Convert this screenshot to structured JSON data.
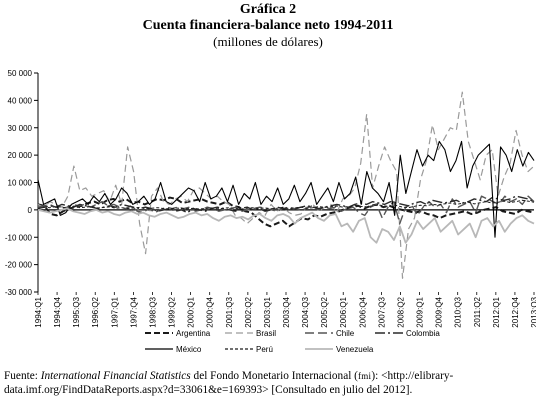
{
  "header": {
    "label": "Gráfica 2",
    "title": "Cuenta financiera-balance neto 1994-2011",
    "subtitle": "(millones de dólares)"
  },
  "source": {
    "prefix": "Fuente: ",
    "italic": "International Financial Statistics",
    "middle": " del Fondo Monetario Internacional (",
    "abbr": "fmi",
    "suffix": "): <http://elibrary-data.imf.org/FindDataReports.aspx?d=33061&e=169393> [Consultado en julio del 2012]."
  },
  "chart_data": {
    "type": "line",
    "title": "Cuenta financiera-balance neto 1994-2011",
    "ylabel": "",
    "xlabel": "",
    "ylim": [
      -30000,
      50000
    ],
    "yticks": [
      -30000,
      -20000,
      -10000,
      0,
      10000,
      20000,
      30000,
      40000,
      50000
    ],
    "ytick_labels": [
      "-30 000",
      "-20 000",
      "-10 000",
      "0",
      "10 000",
      "20 000",
      "30 000",
      "40 000",
      "50 000"
    ],
    "grid": false,
    "legend_position": "bottom",
    "x_start": {
      "year": 1994,
      "quarter": 1
    },
    "x_end": {
      "year": 2013,
      "quarter": 3
    },
    "x_tick_labels": [
      "1994:Q1",
      "1994:Q4",
      "1995:Q3",
      "1996:Q2",
      "1997:Q1",
      "1997:Q4",
      "1998:Q3",
      "1999:Q2",
      "2000:Q1",
      "2000:Q4",
      "2001:Q3",
      "2002:Q2",
      "2003:Q1",
      "2003:Q4",
      "2004:Q3",
      "2005:Q2",
      "2006:Q1",
      "2006:Q4",
      "2007:Q3",
      "2008:Q2",
      "2009:Q1",
      "2009:Q4",
      "2010:Q3",
      "2011:Q2",
      "2012:Q1",
      "2012:Q4",
      "2013:Q3"
    ],
    "series": [
      {
        "name": "Argentina",
        "color": "#1a1a1a",
        "dash": "6,3",
        "width": 2,
        "values": [
          2000,
          1500,
          -1500,
          -2000,
          -500,
          500,
          1000,
          1500,
          2500,
          3000,
          2000,
          3500,
          4000,
          3000,
          4000,
          2500,
          3000,
          2000,
          3000,
          4000,
          3500,
          4500,
          4000,
          2500,
          3000,
          3500,
          4000,
          3000,
          2500,
          2000,
          3000,
          1500,
          1000,
          -500,
          -1000,
          -3000,
          -5000,
          -6000,
          -5000,
          -4000,
          -6000,
          -4500,
          -3000,
          -3500,
          -2000,
          -2500,
          -1500,
          -1000,
          -500,
          500,
          1000,
          1500,
          500,
          1500,
          2000,
          1000,
          1500,
          500,
          0,
          -500,
          -1000,
          -500,
          -1500,
          -2000,
          -3000,
          -2000,
          -1500,
          -1000,
          -500,
          -1500,
          -1000,
          0,
          500,
          1000,
          -500,
          -1000,
          -1500,
          0,
          -500,
          -1000
        ]
      },
      {
        "name": "Brasil",
        "color": "#9a9a9a",
        "dash": "7,4",
        "width": 1.2,
        "values": [
          2000,
          1000,
          3000,
          2000,
          1000,
          5000,
          16000,
          7000,
          8000,
          5000,
          6000,
          7000,
          3000,
          9000,
          2000,
          23000,
          14000,
          -5000,
          -16000,
          5000,
          8000,
          3000,
          2000,
          4000,
          5000,
          3000,
          7000,
          8000,
          6000,
          4000,
          5000,
          3000,
          2000,
          -2000,
          -3000,
          -5000,
          -3000,
          -1000,
          -2000,
          2000,
          -500,
          1000,
          -1000,
          -2000,
          -1500,
          1000,
          2000,
          -500,
          1000,
          2000,
          -1000,
          4000,
          5000,
          8000,
          17000,
          35000,
          8000,
          16000,
          23000,
          18000,
          14000,
          -25000,
          -7000,
          -3000,
          11000,
          18000,
          31000,
          22000,
          26000,
          30000,
          29000,
          43000,
          25000,
          18000,
          11000,
          20000,
          22000,
          5000,
          12000,
          17000,
          29000,
          20000,
          14000,
          16000
        ]
      },
      {
        "name": "Chile",
        "color": "#555555",
        "dash": "9,4",
        "width": 1.4,
        "values": [
          1000,
          1500,
          2000,
          1000,
          500,
          1000,
          2000,
          1500,
          2000,
          1000,
          2000,
          3000,
          1500,
          2000,
          1000,
          500,
          1500,
          -500,
          -1000,
          500,
          -1000,
          0,
          1000,
          500,
          1000,
          500,
          1000,
          -500,
          0,
          1000,
          500,
          -500,
          0,
          500,
          1000,
          -500,
          0,
          500,
          1000,
          500,
          0,
          -500,
          500,
          1000,
          500,
          0,
          500,
          1500,
          0,
          1000,
          500,
          1000,
          -500,
          500,
          1000,
          -1000,
          -2000,
          1000,
          2000,
          -3000,
          1000,
          3000,
          -5000,
          1000,
          2000,
          -2000,
          1000,
          3000,
          1000,
          2000,
          -1000,
          4000,
          1000,
          2000,
          3000,
          -1000,
          5000,
          4000,
          3000,
          2000,
          5000,
          3000,
          4000,
          2000,
          5000,
          3000
        ]
      },
      {
        "name": "Colombia",
        "color": "#2a2a2a",
        "dash": "10,3,2,3",
        "width": 1.4,
        "values": [
          500,
          1000,
          1500,
          1000,
          2000,
          1500,
          1000,
          2000,
          1500,
          1000,
          500,
          1000,
          1500,
          1000,
          2000,
          1500,
          1000,
          500,
          1000,
          500,
          -500,
          0,
          500,
          -500,
          0,
          -1000,
          500,
          0,
          -500,
          500,
          1000,
          500,
          0,
          -500,
          500,
          1000,
          0,
          500,
          -500,
          0,
          1000,
          500,
          0,
          500,
          1000,
          1500,
          1000,
          500,
          1000,
          1500,
          2000,
          1500,
          1000,
          2000,
          2500,
          2000,
          3000,
          2500,
          2000,
          3000,
          2500,
          2000,
          1500,
          2500,
          3000,
          2000,
          3500,
          3000,
          2500,
          3000,
          3500,
          2500,
          3000,
          4000,
          3500,
          3000,
          4500,
          4000,
          3500,
          4000,
          5000,
          4500,
          4000,
          3000
        ]
      },
      {
        "name": "México",
        "color": "#000000",
        "dash": "",
        "width": 1.1,
        "values": [
          11000,
          2000,
          3000,
          4000,
          -2000,
          -1000,
          2000,
          3000,
          4000,
          2000,
          5000,
          3000,
          6000,
          2000,
          4000,
          8000,
          6000,
          2000,
          3000,
          5000,
          2000,
          4000,
          10000,
          3000,
          2000,
          4000,
          6000,
          8000,
          7000,
          3000,
          10000,
          4000,
          5000,
          8000,
          3000,
          9000,
          2000,
          6000,
          4000,
          10000,
          2000,
          5000,
          3000,
          8000,
          2000,
          4000,
          9000,
          3000,
          6000,
          10000,
          2000,
          5000,
          8000,
          3000,
          10000,
          4000,
          6000,
          12000,
          2000,
          14000,
          8000,
          6000,
          3000,
          10000,
          -2000,
          20000,
          6000,
          14000,
          22000,
          16000,
          20000,
          18000,
          25000,
          22000,
          14000,
          18000,
          25000,
          8000,
          16000,
          20000,
          22000,
          24000,
          -10000,
          23000,
          20000,
          14000,
          22000,
          16000,
          21000,
          18000
        ]
      },
      {
        "name": "Perú",
        "color": "#1a1a1a",
        "dash": "3,2",
        "width": 1,
        "values": [
          500,
          1000,
          800,
          1200,
          1000,
          600,
          1400,
          800,
          1000,
          1200,
          700,
          900,
          1100,
          600,
          800,
          500,
          700,
          900,
          400,
          600,
          800,
          500,
          300,
          700,
          500,
          400,
          600,
          300,
          500,
          700,
          400,
          600,
          800,
          500,
          300,
          600,
          800,
          500,
          700,
          400,
          600,
          900,
          500,
          700,
          1000,
          600,
          800,
          1200,
          900,
          1100,
          1400,
          1000,
          1200,
          1600,
          1300,
          1100,
          1500,
          1800,
          1400,
          1200,
          1600,
          1000,
          800,
          1300,
          1700,
          1500,
          2000,
          1800,
          2200,
          2500,
          2000,
          2400,
          2800,
          2200,
          2600,
          3000,
          2500,
          2800,
          3200,
          2700,
          3000,
          3500,
          3200,
          2800
        ]
      },
      {
        "name": "Venezuela",
        "color": "#b8b8b8",
        "dash": "",
        "width": 1.8,
        "values": [
          0,
          -500,
          -1000,
          -500,
          0,
          500,
          -500,
          -1000,
          -1500,
          -500,
          0,
          -1000,
          -500,
          -1500,
          -2000,
          -1000,
          -500,
          -1500,
          -1000,
          -2000,
          -2500,
          -1500,
          -1000,
          -2000,
          -3000,
          -2500,
          -1500,
          -1000,
          -2000,
          -1500,
          -3000,
          -4000,
          -2500,
          -2000,
          -3000,
          -2500,
          -3500,
          -2000,
          -1500,
          -3000,
          -4000,
          -2000,
          -1500,
          -2500,
          -5000,
          -3000,
          -2000,
          -1000,
          -3000,
          -4000,
          -2000,
          -1500,
          -6000,
          -5000,
          -8000,
          -4000,
          -3000,
          -10000,
          -12000,
          -7000,
          -8000,
          -11000,
          -6000,
          -12000,
          -9000,
          -4000,
          -7000,
          -5000,
          -3000,
          -8000,
          -6000,
          -4000,
          -9000,
          -7000,
          -5000,
          -10000,
          -4000,
          -3000,
          -6000,
          -4000,
          -8000,
          -5000,
          -3000,
          -2000,
          -4000,
          -5000
        ]
      }
    ]
  }
}
